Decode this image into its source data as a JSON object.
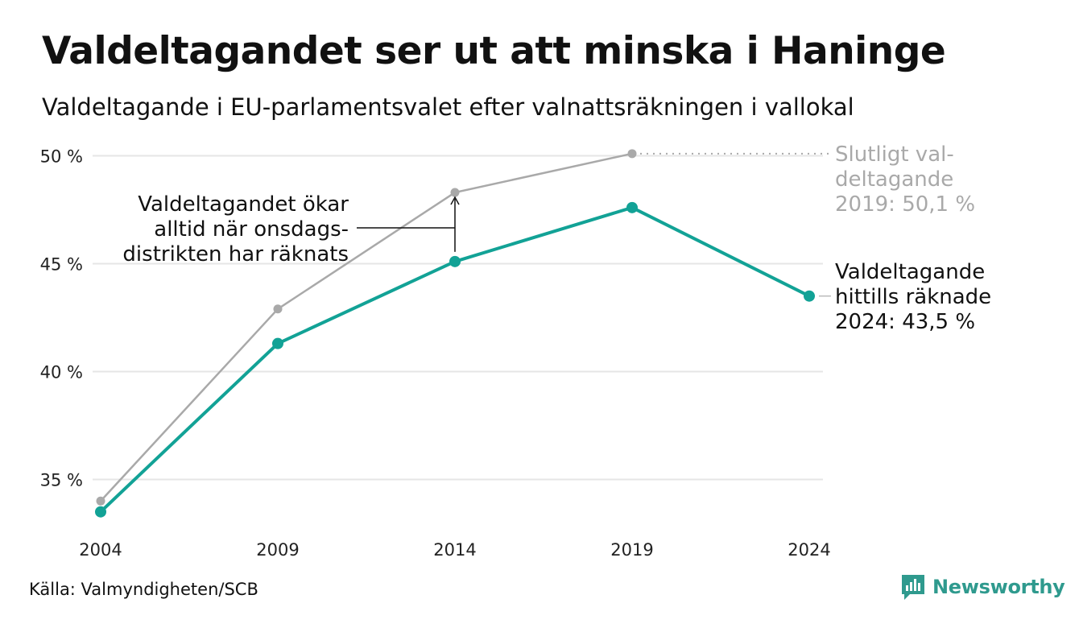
{
  "title": "Valdeltagandet ser ut att minska i Haninge",
  "subtitle": "Valdeltagande i EU-parlamentsvalet efter valnattsräkningen i vallokal",
  "source": "Källa: Valmyndigheten/SCB",
  "brand": "Newsworthy",
  "colors": {
    "counted": "#12a296",
    "final": "#a9a9a9",
    "grid": "#e6e6e6",
    "annotation": "#111111",
    "brand": "#2f9a8e"
  },
  "chart_data": {
    "type": "line",
    "categories": [
      "2004",
      "2009",
      "2014",
      "2019",
      "2024"
    ],
    "series": [
      {
        "key": "final",
        "values": [
          34.0,
          42.9,
          48.3,
          50.1,
          null
        ]
      },
      {
        "key": "counted",
        "values": [
          33.5,
          41.3,
          45.1,
          47.6,
          43.5
        ]
      }
    ],
    "ylim": [
      33,
      50
    ],
    "yticks": [
      35,
      40,
      45,
      50
    ],
    "ytick_labels": [
      "35 %",
      "40 %",
      "45 %",
      "50 %"
    ],
    "grid": true,
    "annotations": {
      "final_label": [
        "Slutligt val-",
        "deltagande",
        "2019: 50,1 %"
      ],
      "counted_label": [
        "Valdeltagande",
        "hittills räknade",
        "2024: 43,5 %"
      ],
      "gap_note": [
        "Valdeltagandet ökar",
        "alltid när onsdags-",
        "distrikten har räknats"
      ]
    }
  }
}
